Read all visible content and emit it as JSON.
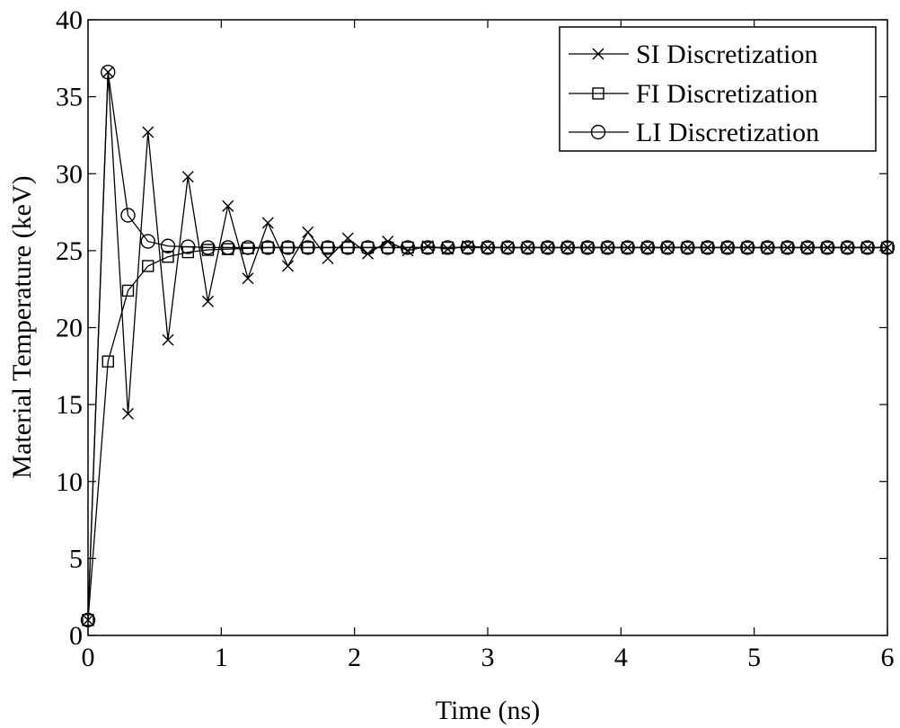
{
  "chart_data": {
    "type": "line",
    "xlabel": "Time (ns)",
    "ylabel": "Material Temperature (keV)",
    "xlim": [
      0,
      6
    ],
    "ylim": [
      0,
      40
    ],
    "x_ticks": [
      0,
      1,
      2,
      3,
      4,
      5,
      6
    ],
    "y_ticks": [
      0,
      5,
      10,
      15,
      20,
      25,
      30,
      35,
      40
    ],
    "grid": false,
    "legend_position": "top-right",
    "x": [
      0,
      0.15,
      0.3,
      0.45,
      0.6,
      0.75,
      0.9,
      1.05,
      1.2,
      1.35,
      1.5,
      1.65,
      1.8,
      1.95,
      2.1,
      2.25,
      2.4,
      2.55,
      2.7,
      2.85,
      3.0,
      3.15,
      3.3,
      3.45,
      3.6,
      3.75,
      3.9,
      4.05,
      4.2,
      4.35,
      4.5,
      4.65,
      4.8,
      4.95,
      5.1,
      5.25,
      5.4,
      5.55,
      5.7,
      5.85,
      6.0
    ],
    "series": [
      {
        "name": "SI Discretization",
        "marker": "x",
        "values": [
          1.0,
          36.6,
          14.4,
          32.7,
          19.2,
          29.8,
          21.7,
          27.9,
          23.2,
          26.8,
          24.0,
          26.2,
          24.5,
          25.8,
          24.8,
          25.6,
          25.0,
          25.3,
          25.1,
          25.3,
          25.2,
          25.2,
          25.2,
          25.2,
          25.2,
          25.2,
          25.2,
          25.2,
          25.2,
          25.2,
          25.2,
          25.2,
          25.2,
          25.2,
          25.2,
          25.2,
          25.2,
          25.2,
          25.2,
          25.2,
          25.2
        ]
      },
      {
        "name": "FI Discretization",
        "marker": "square",
        "values": [
          1.0,
          17.8,
          22.4,
          24.0,
          24.6,
          24.9,
          25.05,
          25.1,
          25.15,
          25.2,
          25.2,
          25.2,
          25.2,
          25.2,
          25.2,
          25.2,
          25.2,
          25.2,
          25.2,
          25.2,
          25.2,
          25.2,
          25.2,
          25.2,
          25.2,
          25.2,
          25.2,
          25.2,
          25.2,
          25.2,
          25.2,
          25.2,
          25.2,
          25.2,
          25.2,
          25.2,
          25.2,
          25.2,
          25.2,
          25.2,
          25.2
        ]
      },
      {
        "name": "LI Discretization",
        "marker": "circle",
        "values": [
          1.0,
          36.6,
          27.3,
          25.6,
          25.3,
          25.25,
          25.2,
          25.2,
          25.2,
          25.2,
          25.2,
          25.2,
          25.2,
          25.2,
          25.2,
          25.2,
          25.2,
          25.2,
          25.2,
          25.2,
          25.2,
          25.2,
          25.2,
          25.2,
          25.2,
          25.2,
          25.2,
          25.2,
          25.2,
          25.2,
          25.2,
          25.2,
          25.2,
          25.2,
          25.2,
          25.2,
          25.2,
          25.2,
          25.2,
          25.2,
          25.2
        ]
      }
    ]
  }
}
